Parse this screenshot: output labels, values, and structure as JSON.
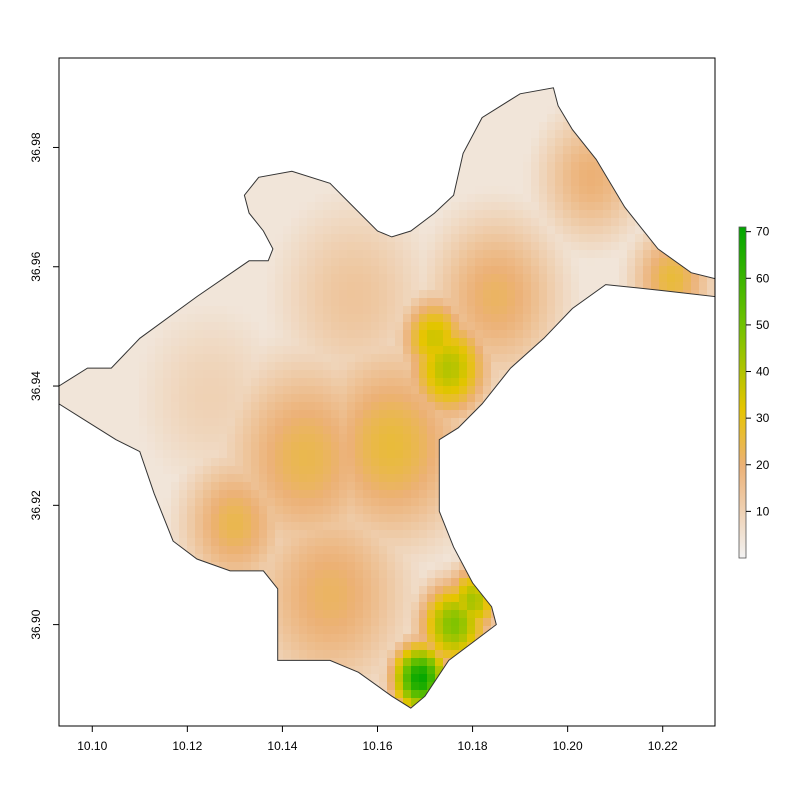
{
  "chart_data": {
    "type": "heatmap",
    "title": "",
    "xlabel": "",
    "ylabel": "",
    "xlim": [
      10.093,
      10.231
    ],
    "ylim": [
      36.883,
      36.995
    ],
    "x_ticks": [
      "10.10",
      "10.12",
      "10.14",
      "10.16",
      "10.18",
      "10.20",
      "10.22"
    ],
    "x_tick_values": [
      10.1,
      10.12,
      10.14,
      10.16,
      10.18,
      10.2,
      10.22
    ],
    "y_ticks": [
      "36.90",
      "36.92",
      "36.94",
      "36.96",
      "36.98"
    ],
    "y_tick_values": [
      36.9,
      36.92,
      36.94,
      36.96,
      36.98
    ],
    "legend": {
      "placement": "right",
      "range": [
        0,
        71
      ],
      "ticks": [
        "10",
        "20",
        "30",
        "40",
        "50",
        "60",
        "70"
      ],
      "tick_values": [
        10,
        20,
        30,
        40,
        50,
        60,
        70
      ],
      "colors": [
        "#f2f2f2",
        "#ecb176",
        "#e6c500",
        "#72c300",
        "#00a600"
      ]
    },
    "boundary": [
      [
        10.093,
        36.94
      ],
      [
        10.099,
        36.943
      ],
      [
        10.104,
        36.943
      ],
      [
        10.11,
        36.948
      ],
      [
        10.122,
        36.955
      ],
      [
        10.133,
        36.961
      ],
      [
        10.137,
        36.961
      ],
      [
        10.138,
        36.963
      ],
      [
        10.136,
        36.966
      ],
      [
        10.133,
        36.969
      ],
      [
        10.132,
        36.972
      ],
      [
        10.135,
        36.975
      ],
      [
        10.142,
        36.976
      ],
      [
        10.15,
        36.974
      ],
      [
        10.155,
        36.97
      ],
      [
        10.16,
        36.966
      ],
      [
        10.163,
        36.965
      ],
      [
        10.167,
        36.966
      ],
      [
        10.172,
        36.969
      ],
      [
        10.176,
        36.972
      ],
      [
        10.178,
        36.979
      ],
      [
        10.182,
        36.985
      ],
      [
        10.19,
        36.989
      ],
      [
        10.197,
        36.99
      ],
      [
        10.198,
        36.987
      ],
      [
        10.201,
        36.983
      ],
      [
        10.206,
        36.978
      ],
      [
        10.212,
        36.97
      ],
      [
        10.219,
        36.963
      ],
      [
        10.226,
        36.959
      ],
      [
        10.231,
        36.958
      ],
      [
        10.231,
        36.955
      ],
      [
        10.22,
        36.956
      ],
      [
        10.208,
        36.957
      ],
      [
        10.201,
        36.953
      ],
      [
        10.195,
        36.948
      ],
      [
        10.188,
        36.943
      ],
      [
        10.182,
        36.937
      ],
      [
        10.177,
        36.933
      ],
      [
        10.173,
        36.931
      ],
      [
        10.173,
        36.925
      ],
      [
        10.173,
        36.919
      ],
      [
        10.176,
        36.913
      ],
      [
        10.18,
        36.907
      ],
      [
        10.184,
        36.903
      ],
      [
        10.185,
        36.9
      ],
      [
        10.18,
        36.897
      ],
      [
        10.175,
        36.894
      ],
      [
        10.17,
        36.888
      ],
      [
        10.167,
        36.886
      ],
      [
        10.163,
        36.888
      ],
      [
        10.156,
        36.892
      ],
      [
        10.15,
        36.894
      ],
      [
        10.144,
        36.894
      ],
      [
        10.139,
        36.894
      ],
      [
        10.139,
        36.906
      ],
      [
        10.136,
        36.909
      ],
      [
        10.129,
        36.909
      ],
      [
        10.122,
        36.911
      ],
      [
        10.117,
        36.914
      ],
      [
        10.113,
        36.922
      ],
      [
        10.11,
        36.929
      ],
      [
        10.105,
        36.931
      ],
      [
        10.099,
        36.934
      ],
      [
        10.093,
        36.937
      ]
    ],
    "hotspots": [
      {
        "x": 10.169,
        "y": 36.891,
        "value": 70,
        "spread": 0.004
      },
      {
        "x": 10.176,
        "y": 36.9,
        "value": 48,
        "spread": 0.005
      },
      {
        "x": 10.18,
        "y": 36.904,
        "value": 42,
        "spread": 0.004
      },
      {
        "x": 10.175,
        "y": 36.943,
        "value": 40,
        "spread": 0.006
      },
      {
        "x": 10.172,
        "y": 36.948,
        "value": 36,
        "spread": 0.005
      },
      {
        "x": 10.163,
        "y": 36.93,
        "value": 26,
        "spread": 0.012
      },
      {
        "x": 10.145,
        "y": 36.928,
        "value": 24,
        "spread": 0.012
      },
      {
        "x": 10.13,
        "y": 36.917,
        "value": 24,
        "spread": 0.008
      },
      {
        "x": 10.15,
        "y": 36.905,
        "value": 22,
        "spread": 0.012
      },
      {
        "x": 10.185,
        "y": 36.955,
        "value": 22,
        "spread": 0.01
      },
      {
        "x": 10.205,
        "y": 36.975,
        "value": 20,
        "spread": 0.008
      },
      {
        "x": 10.222,
        "y": 36.958,
        "value": 26,
        "spread": 0.006
      },
      {
        "x": 10.155,
        "y": 36.955,
        "value": 14,
        "spread": 0.012
      },
      {
        "x": 10.125,
        "y": 36.938,
        "value": 10,
        "spread": 0.012
      }
    ]
  }
}
